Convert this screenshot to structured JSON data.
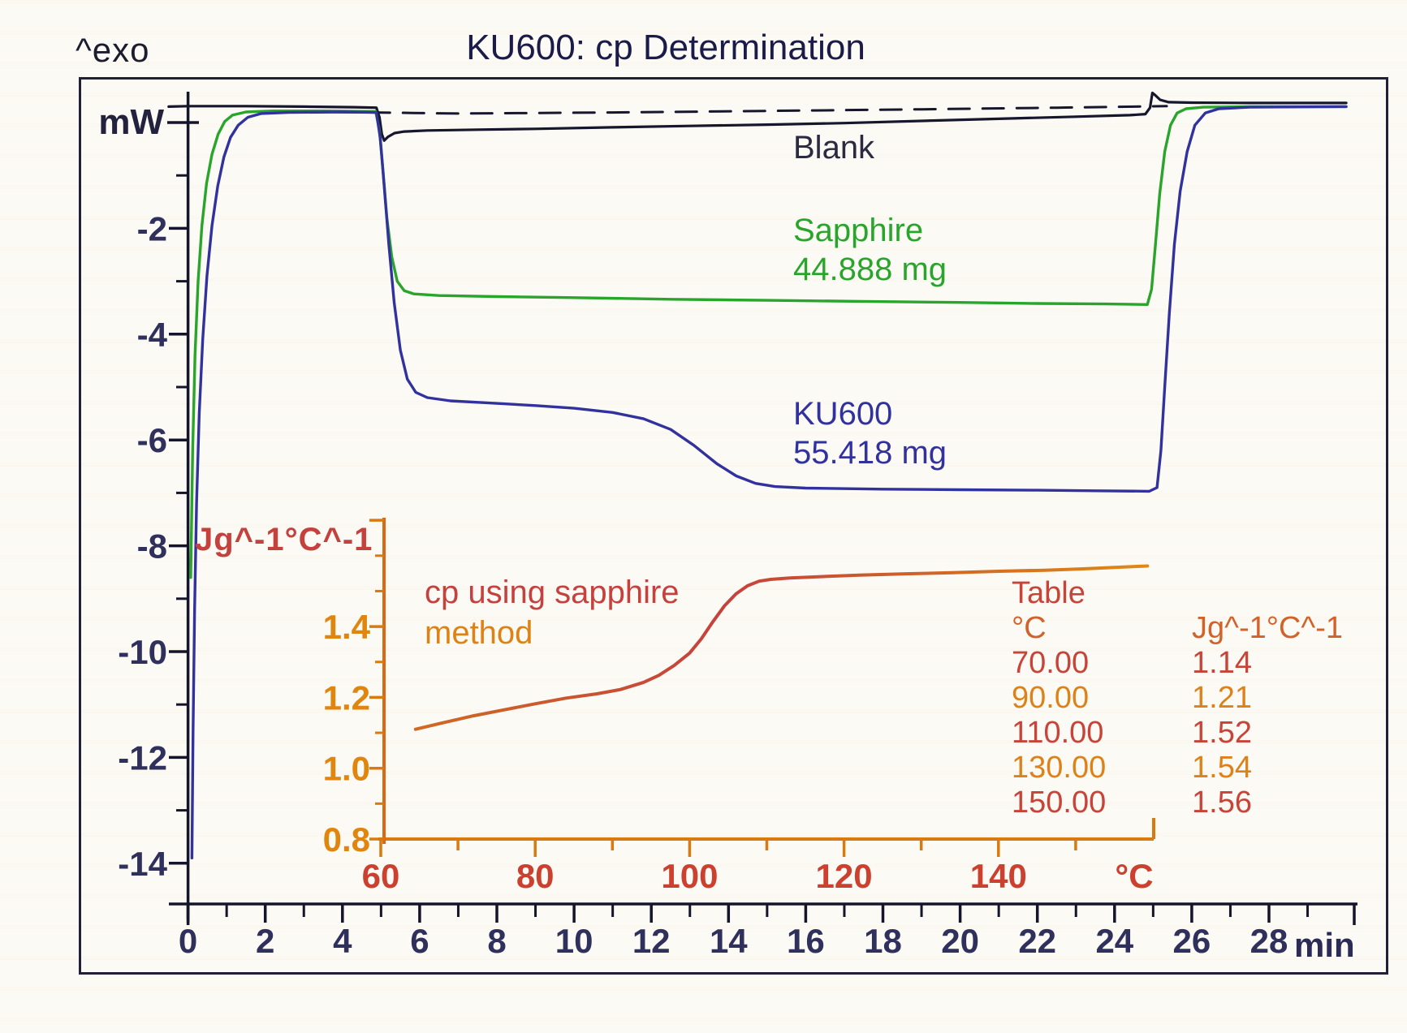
{
  "page": {
    "exo_label": "^exo",
    "title": "KU600: cp Determination",
    "background": "#fcfaf4",
    "frame_color": "#20203a"
  },
  "main_plot": {
    "y_unit_label": "mW",
    "x_unit_label": "min",
    "axis_color": "#14142a",
    "tick_label_color": "#30305c"
  },
  "curve_labels": {
    "blank": {
      "text": "Blank",
      "color": "#2a2a40"
    },
    "sapphire": {
      "name": "Sapphire",
      "mass": "44.888 mg",
      "color": "#2aa52c"
    },
    "ku600": {
      "name": "KU600",
      "mass": "55.418 mg",
      "color": "#32329f"
    }
  },
  "inset": {
    "y_axis_label": "Jg^-1°C^-1",
    "annotation_line1": "cp using sapphire",
    "annotation_line2": "method",
    "annotation_color1": "#c5413e",
    "annotation_color2": "#dd8216",
    "x_unit_label": "°C",
    "axis_color": "#d97a10",
    "x_tick_label_color": "#cc4030",
    "y_tick_label_color": "#e0850e",
    "ylabel_color": "#c5413e"
  },
  "table": {
    "title": "Table",
    "title_color": "#c84338",
    "col1_header": "°C",
    "col2_header": "Jg^-1°C^-1",
    "header_color": "#d2622a",
    "rows": [
      {
        "temp": "70.00",
        "cp": "1.14",
        "color": "#c84338"
      },
      {
        "temp": "90.00",
        "cp": "1.21",
        "color": "#dd821a"
      },
      {
        "temp": "110.00",
        "cp": "1.52",
        "color": "#c84338"
      },
      {
        "temp": "130.00",
        "cp": "1.54",
        "color": "#dd821a"
      },
      {
        "temp": "150.00",
        "cp": "1.56",
        "color": "#c84338"
      }
    ]
  },
  "chart_data": [
    {
      "type": "line",
      "title": "KU600: cp Determination",
      "xlabel": "min",
      "ylabel": "mW",
      "xlim": [
        -0.5,
        30.3
      ],
      "ylim": [
        -15.6,
        0.9
      ],
      "grid": false,
      "x_ticks_labeled": [
        0,
        2,
        4,
        6,
        8,
        10,
        12,
        14,
        16,
        18,
        20,
        22,
        24,
        26,
        28
      ],
      "x_ticks_minor": [
        1,
        3,
        5,
        7,
        9,
        11,
        13,
        15,
        17,
        19,
        21,
        23,
        25,
        27,
        29
      ],
      "y_ticks_labeled": [
        -2,
        -4,
        -6,
        -8,
        -10,
        -12,
        -14
      ],
      "y_ticks_minor": [
        -1,
        -3,
        -5,
        -7,
        -9,
        -11,
        -13
      ],
      "y_tick_zero": 0,
      "series": [
        {
          "name": "Baseline (extrapolated)",
          "color": "#16162c",
          "style": "dashed",
          "width": 3,
          "points": [
            [
              3.8,
              0.2
            ],
            [
              7,
              0.17
            ],
            [
              11,
              0.19
            ],
            [
              15,
              0.22
            ],
            [
              19,
              0.25
            ],
            [
              22.5,
              0.28
            ],
            [
              25.35,
              0.31
            ]
          ]
        },
        {
          "name": "Blank",
          "color": "#16162c",
          "style": "solid",
          "width": 3.2,
          "points": [
            [
              -0.5,
              0.3
            ],
            [
              0,
              0.31
            ],
            [
              1.5,
              0.31
            ],
            [
              3,
              0.3
            ],
            [
              4.3,
              0.29
            ],
            [
              4.88,
              0.28
            ],
            [
              4.96,
              0.1
            ],
            [
              5.02,
              -0.22
            ],
            [
              5.08,
              -0.34
            ],
            [
              5.18,
              -0.27
            ],
            [
              5.35,
              -0.2
            ],
            [
              5.6,
              -0.17
            ],
            [
              6.2,
              -0.15
            ],
            [
              7.5,
              -0.135
            ],
            [
              9,
              -0.12
            ],
            [
              11,
              -0.09
            ],
            [
              13,
              -0.065
            ],
            [
              15,
              -0.04
            ],
            [
              17,
              -0.01
            ],
            [
              19,
              0.03
            ],
            [
              21,
              0.07
            ],
            [
              23,
              0.11
            ],
            [
              24.4,
              0.14
            ],
            [
              24.8,
              0.16
            ],
            [
              24.92,
              0.28
            ],
            [
              24.98,
              0.56
            ],
            [
              25.05,
              0.52
            ],
            [
              25.18,
              0.43
            ],
            [
              25.4,
              0.385
            ],
            [
              26,
              0.375
            ],
            [
              27.5,
              0.37
            ],
            [
              30,
              0.37
            ]
          ]
        },
        {
          "name": "Sapphire",
          "mass": "44.888 mg",
          "color": "#2aa52c",
          "style": "solid",
          "width": 3.4,
          "points": [
            [
              0.07,
              -8.6
            ],
            [
              0.12,
              -6.2
            ],
            [
              0.18,
              -4.4
            ],
            [
              0.26,
              -3.0
            ],
            [
              0.36,
              -1.95
            ],
            [
              0.48,
              -1.15
            ],
            [
              0.62,
              -0.6
            ],
            [
              0.78,
              -0.22
            ],
            [
              0.95,
              0.02
            ],
            [
              1.15,
              0.14
            ],
            [
              1.5,
              0.2
            ],
            [
              2.2,
              0.22
            ],
            [
              3.5,
              0.22
            ],
            [
              4.86,
              0.21
            ],
            [
              4.96,
              -0.15
            ],
            [
              5.05,
              -0.9
            ],
            [
              5.15,
              -1.8
            ],
            [
              5.28,
              -2.55
            ],
            [
              5.42,
              -3.0
            ],
            [
              5.6,
              -3.18
            ],
            [
              5.85,
              -3.24
            ],
            [
              6.5,
              -3.27
            ],
            [
              8,
              -3.29
            ],
            [
              10,
              -3.31
            ],
            [
              12.5,
              -3.34
            ],
            [
              15,
              -3.36
            ],
            [
              17.5,
              -3.38
            ],
            [
              20,
              -3.4
            ],
            [
              22,
              -3.42
            ],
            [
              23.8,
              -3.43
            ],
            [
              24.85,
              -3.44
            ],
            [
              24.96,
              -3.15
            ],
            [
              25.06,
              -2.3
            ],
            [
              25.17,
              -1.35
            ],
            [
              25.3,
              -0.55
            ],
            [
              25.45,
              -0.05
            ],
            [
              25.62,
              0.18
            ],
            [
              25.85,
              0.26
            ],
            [
              26.3,
              0.29
            ],
            [
              27.5,
              0.3
            ],
            [
              30,
              0.3
            ]
          ]
        },
        {
          "name": "KU600",
          "mass": "55.418 mg",
          "color": "#32329f",
          "style": "solid",
          "width": 3.4,
          "points": [
            [
              0.1,
              -13.9
            ],
            [
              0.13,
              -11.5
            ],
            [
              0.17,
              -9.2
            ],
            [
              0.22,
              -7.2
            ],
            [
              0.29,
              -5.5
            ],
            [
              0.38,
              -4.1
            ],
            [
              0.49,
              -2.9
            ],
            [
              0.62,
              -1.95
            ],
            [
              0.77,
              -1.2
            ],
            [
              0.93,
              -0.65
            ],
            [
              1.1,
              -0.28
            ],
            [
              1.3,
              -0.05
            ],
            [
              1.55,
              0.1
            ],
            [
              1.9,
              0.17
            ],
            [
              2.6,
              0.19
            ],
            [
              4,
              0.2
            ],
            [
              4.88,
              0.19
            ],
            [
              4.98,
              -0.3
            ],
            [
              5.08,
              -1.2
            ],
            [
              5.2,
              -2.3
            ],
            [
              5.34,
              -3.4
            ],
            [
              5.5,
              -4.3
            ],
            [
              5.68,
              -4.85
            ],
            [
              5.9,
              -5.1
            ],
            [
              6.2,
              -5.2
            ],
            [
              6.8,
              -5.26
            ],
            [
              7.8,
              -5.3
            ],
            [
              9,
              -5.35
            ],
            [
              10,
              -5.4
            ],
            [
              11,
              -5.48
            ],
            [
              11.8,
              -5.6
            ],
            [
              12.5,
              -5.8
            ],
            [
              13.1,
              -6.1
            ],
            [
              13.7,
              -6.45
            ],
            [
              14.2,
              -6.68
            ],
            [
              14.7,
              -6.82
            ],
            [
              15.2,
              -6.88
            ],
            [
              16,
              -6.91
            ],
            [
              18,
              -6.93
            ],
            [
              20,
              -6.94
            ],
            [
              22,
              -6.95
            ],
            [
              23.5,
              -6.96
            ],
            [
              24.9,
              -6.97
            ],
            [
              25.1,
              -6.9
            ],
            [
              25.2,
              -6.2
            ],
            [
              25.3,
              -5.0
            ],
            [
              25.42,
              -3.6
            ],
            [
              25.55,
              -2.3
            ],
            [
              25.7,
              -1.3
            ],
            [
              25.88,
              -0.55
            ],
            [
              26.08,
              -0.05
            ],
            [
              26.35,
              0.18
            ],
            [
              26.7,
              0.26
            ],
            [
              27.5,
              0.29
            ],
            [
              30,
              0.3
            ]
          ]
        }
      ]
    },
    {
      "type": "line",
      "title": "cp using sapphire method",
      "xlabel": "°C",
      "ylabel": "Jg^-1°C^-1",
      "xlim": [
        60,
        160
      ],
      "ylim": [
        0.8,
        1.7
      ],
      "grid": false,
      "x_ticks_labeled": [
        60,
        80,
        100,
        120,
        140
      ],
      "x_ticks_minor": [
        70,
        90,
        110,
        130,
        150
      ],
      "y_ticks_labeled": [
        0.8,
        1.0,
        1.2,
        1.4
      ],
      "y_ticks_minor": [
        0.9,
        1.1,
        1.3,
        1.5,
        1.6
      ],
      "y_axis_end_tick": 1.7,
      "series": [
        {
          "name": "cp (sapphire method)",
          "color_start": "#cf6a22",
          "color_mid": "#c5413e",
          "color_end": "#df8a14",
          "width": 4,
          "points": [
            [
              64.5,
              1.11
            ],
            [
              68,
              1.128
            ],
            [
              72,
              1.148
            ],
            [
              76,
              1.165
            ],
            [
              80,
              1.182
            ],
            [
              84,
              1.198
            ],
            [
              88,
              1.21
            ],
            [
              91,
              1.222
            ],
            [
              94,
              1.242
            ],
            [
              96,
              1.262
            ],
            [
              98,
              1.29
            ],
            [
              100,
              1.325
            ],
            [
              101.5,
              1.365
            ],
            [
              103,
              1.413
            ],
            [
              104.5,
              1.458
            ],
            [
              106,
              1.492
            ],
            [
              107.5,
              1.515
            ],
            [
              109,
              1.528
            ],
            [
              110.5,
              1.533
            ],
            [
              113,
              1.537
            ],
            [
              117,
              1.541
            ],
            [
              122,
              1.545
            ],
            [
              128,
              1.549
            ],
            [
              134,
              1.552
            ],
            [
              140,
              1.556
            ],
            [
              146,
              1.559
            ],
            [
              151,
              1.563
            ],
            [
              155,
              1.567
            ],
            [
              159.3,
              1.571
            ]
          ]
        }
      ]
    }
  ]
}
